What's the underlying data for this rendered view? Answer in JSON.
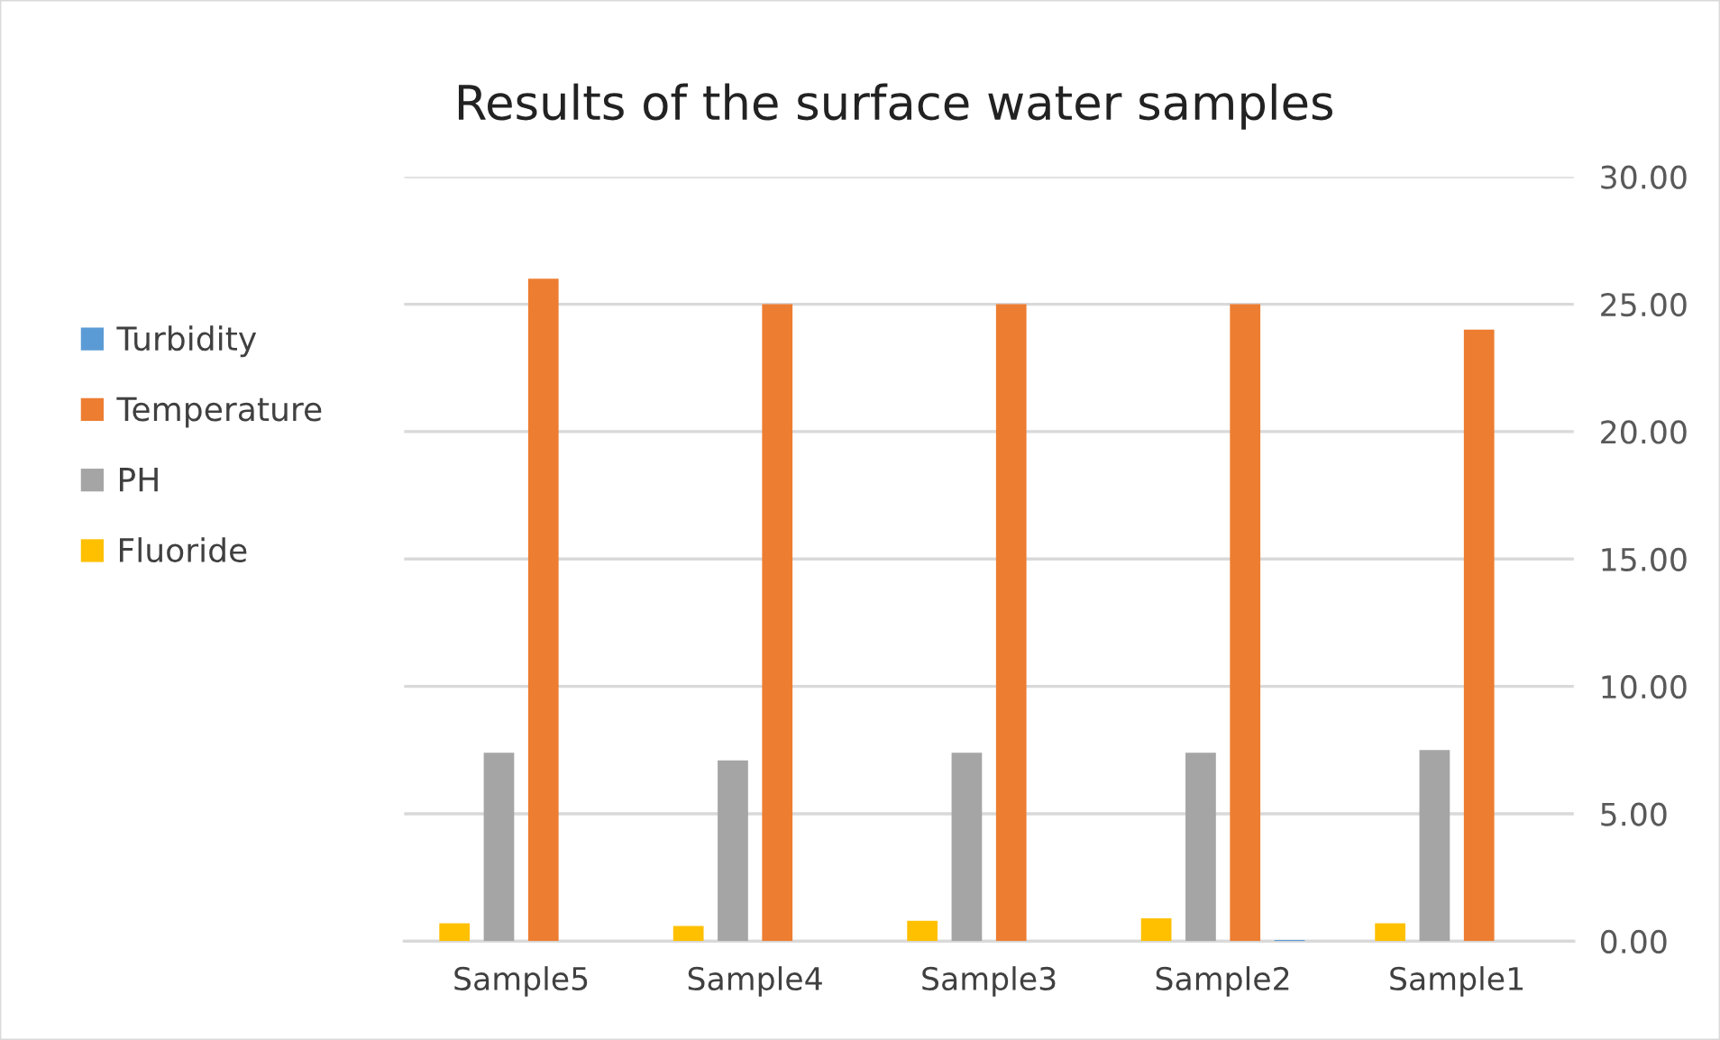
{
  "chart_data": {
    "type": "bar",
    "title": "Results of the surface water samples",
    "categories": [
      "Sample5",
      "Sample4",
      "Sample3",
      "Sample2",
      "Sample1"
    ],
    "series": [
      {
        "name": "Turbidity",
        "color": "#5b9bd5",
        "values": [
          0,
          0,
          0,
          0.05,
          0
        ]
      },
      {
        "name": "Temperature",
        "color": "#ed7d31",
        "values": [
          26,
          25,
          25,
          25,
          24
        ]
      },
      {
        "name": "PH",
        "color": "#a5a5a5",
        "values": [
          7.4,
          7.1,
          7.4,
          7.4,
          7.5
        ]
      },
      {
        "name": "Fluoride",
        "color": "#ffc000",
        "values": [
          0.7,
          0.6,
          0.8,
          0.9,
          0.7
        ]
      }
    ],
    "ylim": [
      0,
      30
    ],
    "yticks": [
      {
        "value": 0,
        "label": "0.00"
      },
      {
        "value": 5,
        "label": "5.00"
      },
      {
        "value": 10,
        "label": "10.00"
      },
      {
        "value": 15,
        "label": "15.00"
      },
      {
        "value": 20,
        "label": "20.00"
      },
      {
        "value": 25,
        "label": "25.00"
      },
      {
        "value": 30,
        "label": "30.00"
      }
    ],
    "grid": "y",
    "legend": "left"
  }
}
